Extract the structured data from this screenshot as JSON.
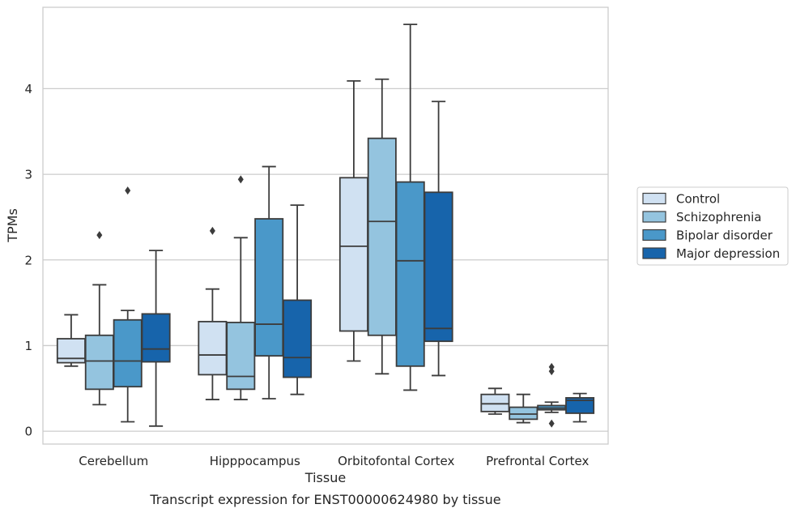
{
  "chart_data": {
    "type": "box",
    "title": "",
    "caption": "Transcript expression for ENST00000624980 by tissue",
    "xlabel": "Tissue",
    "ylabel": "TPMs",
    "ylim": [
      -0.15,
      4.95
    ],
    "yticks": [
      0,
      1,
      2,
      3,
      4
    ],
    "grid": "horizontal",
    "legend_position": "right",
    "categories": [
      "Cerebellum",
      "Hipppocampus",
      "Orbitofontal Cortex",
      "Prefrontal Cortex"
    ],
    "series": [
      {
        "name": "Control",
        "color": "#d0e1f2",
        "boxes": [
          {
            "whislo": 0.76,
            "q1": 0.8,
            "med": 0.85,
            "q3": 1.08,
            "whishi": 1.36,
            "fliers": []
          },
          {
            "whislo": 0.37,
            "q1": 0.66,
            "med": 0.89,
            "q3": 1.28,
            "whishi": 1.66,
            "fliers": [
              2.34
            ]
          },
          {
            "whislo": 0.82,
            "q1": 1.17,
            "med": 2.16,
            "q3": 2.96,
            "whishi": 4.09,
            "fliers": []
          },
          {
            "whislo": 0.2,
            "q1": 0.23,
            "med": 0.32,
            "q3": 0.43,
            "whishi": 0.5,
            "fliers": []
          }
        ]
      },
      {
        "name": "Schizophrenia",
        "color": "#94c4df",
        "boxes": [
          {
            "whislo": 0.31,
            "q1": 0.49,
            "med": 0.82,
            "q3": 1.12,
            "whishi": 1.71,
            "fliers": [
              2.29
            ]
          },
          {
            "whislo": 0.37,
            "q1": 0.49,
            "med": 0.64,
            "q3": 1.27,
            "whishi": 2.26,
            "fliers": [
              2.94
            ]
          },
          {
            "whislo": 0.67,
            "q1": 1.12,
            "med": 2.45,
            "q3": 3.42,
            "whishi": 4.11,
            "fliers": []
          },
          {
            "whislo": 0.1,
            "q1": 0.14,
            "med": 0.2,
            "q3": 0.28,
            "whishi": 0.43,
            "fliers": []
          }
        ]
      },
      {
        "name": "Bipolar disorder",
        "color": "#4a98c9",
        "boxes": [
          {
            "whislo": 0.11,
            "q1": 0.52,
            "med": 0.82,
            "q3": 1.3,
            "whishi": 1.41,
            "fliers": [
              2.81
            ]
          },
          {
            "whislo": 0.38,
            "q1": 0.88,
            "med": 1.25,
            "q3": 2.48,
            "whishi": 3.09,
            "fliers": []
          },
          {
            "whislo": 0.48,
            "q1": 0.76,
            "med": 1.99,
            "q3": 2.91,
            "whishi": 4.75,
            "fliers": []
          },
          {
            "whislo": 0.22,
            "q1": 0.25,
            "med": 0.27,
            "q3": 0.3,
            "whishi": 0.34,
            "fliers": [
              0.7,
              0.75,
              0.09
            ]
          }
        ]
      },
      {
        "name": "Major depression",
        "color": "#1764ab",
        "boxes": [
          {
            "whislo": 0.06,
            "q1": 0.81,
            "med": 0.96,
            "q3": 1.37,
            "whishi": 2.11,
            "fliers": []
          },
          {
            "whislo": 0.43,
            "q1": 0.63,
            "med": 0.86,
            "q3": 1.53,
            "whishi": 2.64,
            "fliers": []
          },
          {
            "whislo": 0.65,
            "q1": 1.05,
            "med": 1.2,
            "q3": 2.79,
            "whishi": 3.85,
            "fliers": []
          },
          {
            "whislo": 0.11,
            "q1": 0.21,
            "med": 0.36,
            "q3": 0.39,
            "whishi": 0.44,
            "fliers": []
          }
        ]
      }
    ]
  }
}
